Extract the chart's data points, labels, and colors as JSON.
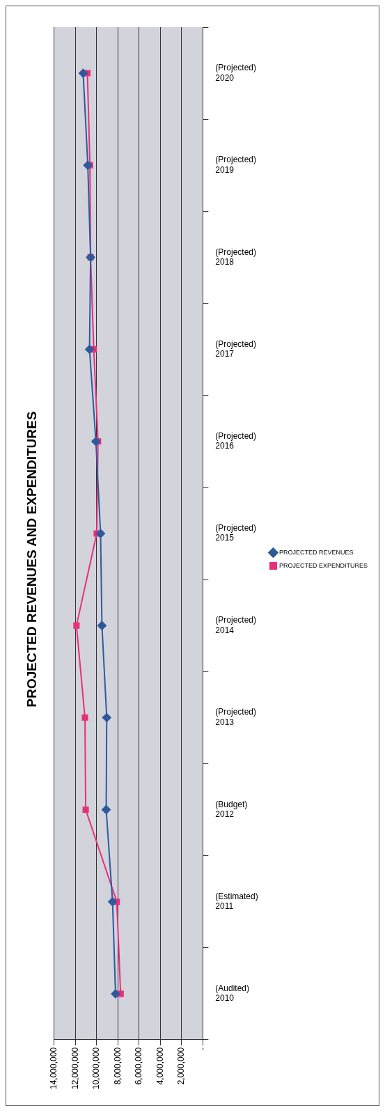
{
  "chart_data": {
    "type": "line",
    "title": "PROJECTED REVENUES AND EXPENDITURES",
    "orientation": "horizontal",
    "categories": [
      "(Projected)\n2020",
      "(Projected)\n2019",
      "(Projected)\n2018",
      "(Projected)\n2017",
      "(Projected)\n2016",
      "(Projected)\n2015",
      "(Projected)\n2014",
      "(Projected)\n2013",
      "(Budget)\n2012",
      "(Estimated)\n2011",
      "(Audited)\n2010"
    ],
    "series": [
      {
        "name": "PROJECTED REVENUES",
        "color": "#2e5a9c",
        "marker": "diamond",
        "values": [
          11270000,
          10830000,
          10570000,
          10670000,
          10070000,
          9630000,
          9500000,
          9050000,
          9100000,
          8500000,
          8220000
        ]
      },
      {
        "name": "PROJECTED EXPENDITURES",
        "color": "#e5317a",
        "marker": "square",
        "values": [
          10870000,
          10630000,
          10570000,
          10270000,
          9870000,
          9990000,
          11900000,
          11100000,
          11030000,
          8100000,
          7740000
        ]
      }
    ],
    "xlim": [
      14000000,
      0
    ],
    "xticks": [
      {
        "value": 14000000,
        "label": "14,000,000"
      },
      {
        "value": 12000000,
        "label": "12,000,000"
      },
      {
        "value": 10000000,
        "label": "10,000,000"
      },
      {
        "value": 8000000,
        "label": "8,000,000"
      },
      {
        "value": 6000000,
        "label": "6,000,000"
      },
      {
        "value": 4000000,
        "label": "4,000,000"
      },
      {
        "value": 2000000,
        "label": "2,000,000"
      },
      {
        "value": 0,
        "label": "-"
      }
    ],
    "grid": "x",
    "legend": "right",
    "line_style": "solid"
  }
}
